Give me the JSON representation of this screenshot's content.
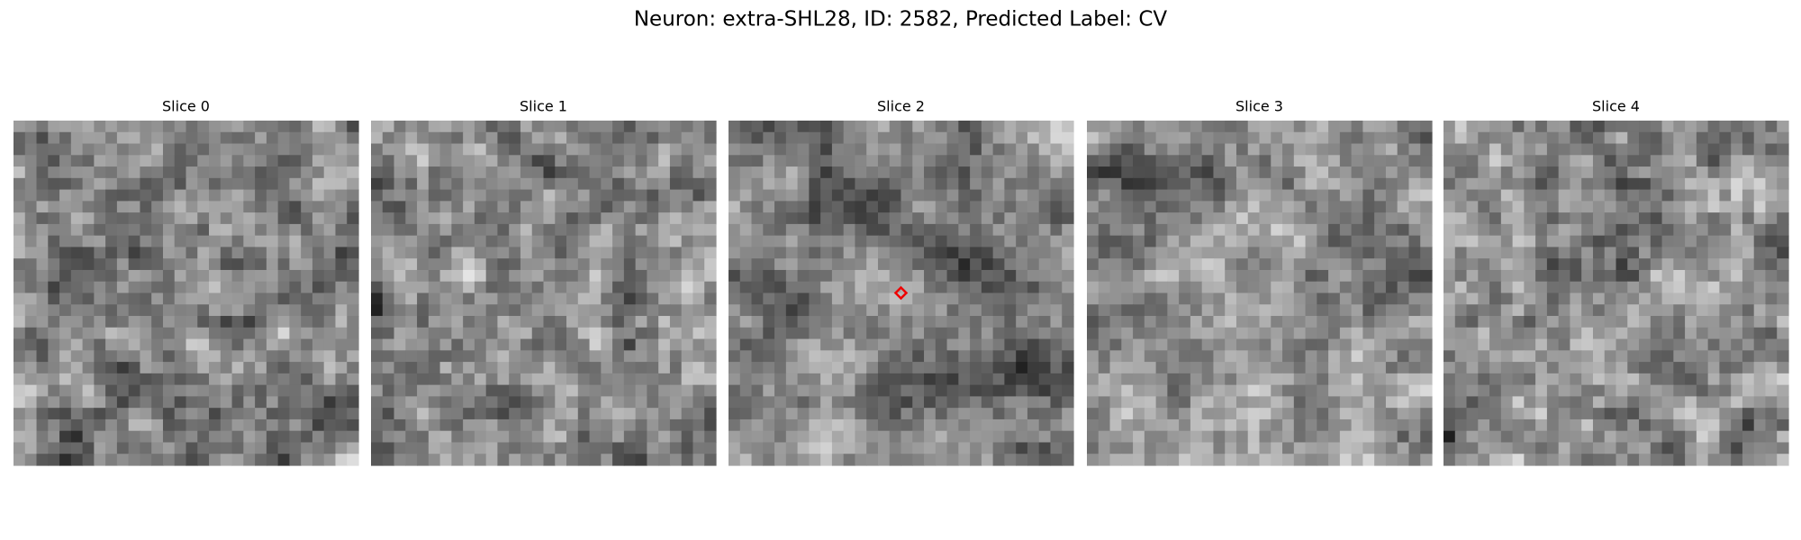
{
  "title": "Neuron: extra-SHL28, ID: 2582, Predicted Label: CV",
  "panels": [
    {
      "title": "Slice 0"
    },
    {
      "title": "Slice 1"
    },
    {
      "title": "Slice 2"
    },
    {
      "title": "Slice 3"
    },
    {
      "title": "Slice 4"
    }
  ]
}
